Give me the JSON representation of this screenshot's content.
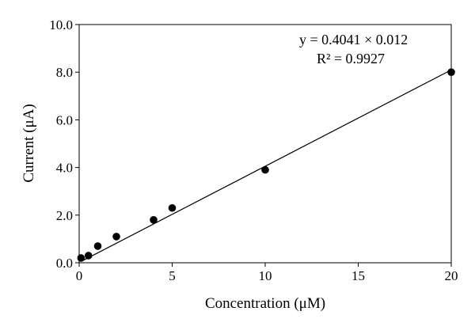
{
  "chart_data": {
    "type": "scatter",
    "xlabel": "Concentration (μM)",
    "ylabel": "Current (μA)",
    "xlim": [
      0,
      20
    ],
    "ylim": [
      0,
      10
    ],
    "x_ticks": [
      0,
      5,
      10,
      15,
      20
    ],
    "y_ticks": [
      0,
      2,
      4,
      6,
      8,
      10
    ],
    "x_tick_labels": [
      "0",
      "5",
      "10",
      "15",
      "20"
    ],
    "y_tick_labels": [
      "0.0",
      "2.0",
      "4.0",
      "6.0",
      "8.0",
      "10.0"
    ],
    "grid": false,
    "series": [
      {
        "marker": "filled-circle",
        "color": "#000000",
        "points": [
          {
            "x": 0.1,
            "y": 0.2
          },
          {
            "x": 0.5,
            "y": 0.3
          },
          {
            "x": 1,
            "y": 0.7
          },
          {
            "x": 2,
            "y": 1.1
          },
          {
            "x": 4,
            "y": 1.8
          },
          {
            "x": 5,
            "y": 2.3
          },
          {
            "x": 10,
            "y": 3.9
          },
          {
            "x": 20,
            "y": 8.0
          }
        ]
      }
    ],
    "fit_line": {
      "slope": 0.4041,
      "intercept": 0.012,
      "x_range": [
        0.2,
        20
      ]
    },
    "annotations": {
      "equation": "y = 0.4041 × 0.012",
      "r_squared": "R² = 0.9927"
    }
  }
}
